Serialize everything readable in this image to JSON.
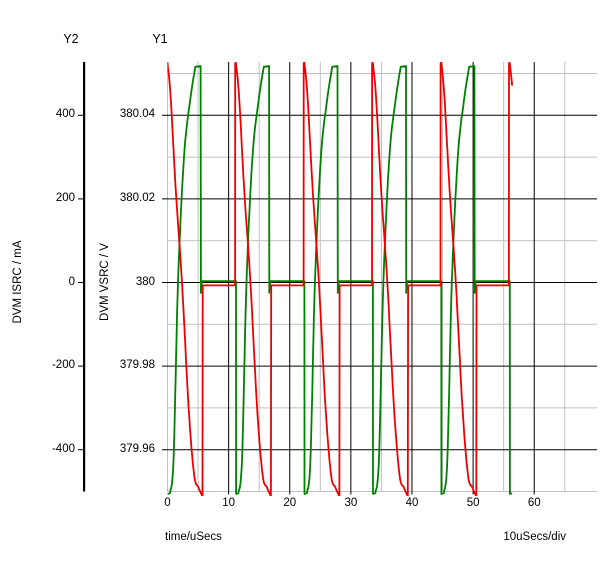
{
  "window": {
    "background": "#ffffff",
    "text_color": "#000000"
  },
  "chart_data": {
    "type": "line",
    "title": "",
    "grid": {
      "major_color": "#000000",
      "minor_color": "#c0c0c0",
      "grid_on": true
    },
    "x_axis": {
      "label": "time/uSecs",
      "per_div": "10uSecs/div",
      "ticks": [
        0,
        10,
        20,
        30,
        40,
        50,
        60
      ],
      "minor_ticks": [
        0,
        5,
        15,
        25,
        35,
        45,
        55,
        65
      ],
      "range_us": [
        0,
        70.3
      ]
    },
    "y1_axis": {
      "name": "Y1",
      "label": "DVM VSRC / V",
      "tick_labels": [
        "380.04",
        "380.02",
        "380",
        "379.98",
        "379.96"
      ],
      "tick_values_V": [
        380.04,
        380.02,
        380.0,
        379.98,
        379.96
      ],
      "minor_values_V": [
        380.05,
        380.03,
        380.01,
        379.99,
        379.97,
        379.95
      ],
      "range_V": [
        379.9489,
        380.0527
      ],
      "note": "V = 380 + mA/10000 (shares pixel grid with Y2)"
    },
    "y2_axis": {
      "name": "Y2",
      "label": "DVM ISRC / mA",
      "tick_labels": [
        "400",
        "200",
        "0",
        "-200",
        "-400"
      ],
      "tick_values_mA": [
        400,
        200,
        0,
        -200,
        -400
      ],
      "range_mA": [
        -510.8,
        527.5
      ]
    },
    "series": [
      {
        "name": "DVM ISRC",
        "axis": "Y2",
        "color": "#ee0000",
        "period_us": 11.2,
        "t_offset_us": -0.14,
        "t_end_us": 56.38,
        "cycles": 6,
        "smooth_from": 2,
        "smooth_to": 9,
        "cycle_anchors_us_mA": [
          [
            0.0,
            -7
          ],
          [
            0.02,
            524
          ],
          [
            0.12,
            527
          ],
          [
            0.65,
            445
          ],
          [
            1.5,
            220
          ],
          [
            2.51,
            0
          ],
          [
            3.6,
            -300
          ],
          [
            4.5,
            -460
          ],
          [
            5.2,
            -490
          ],
          [
            5.86,
            -512
          ],
          [
            5.9,
            -7
          ],
          [
            11.2,
            -7
          ]
        ]
      },
      {
        "name": "DVM VSRC",
        "axis": "Y1",
        "color": "#008000",
        "period_us": 11.2,
        "t_offset_us": 0,
        "t_end_us": 56.38,
        "cycles": 6,
        "smooth_from": 2,
        "smooth_to": 7,
        "cycle_anchors_us_mA": [
          [
            0.0,
            3
          ],
          [
            0.02,
            -506
          ],
          [
            0.4,
            -504
          ],
          [
            1.0,
            -420
          ],
          [
            1.72,
            0
          ],
          [
            2.7,
            300
          ],
          [
            3.7,
            435
          ],
          [
            4.55,
            516
          ],
          [
            5.42,
            518
          ],
          [
            5.46,
            -25
          ],
          [
            5.62,
            3
          ],
          [
            11.2,
            3
          ]
        ]
      }
    ]
  }
}
